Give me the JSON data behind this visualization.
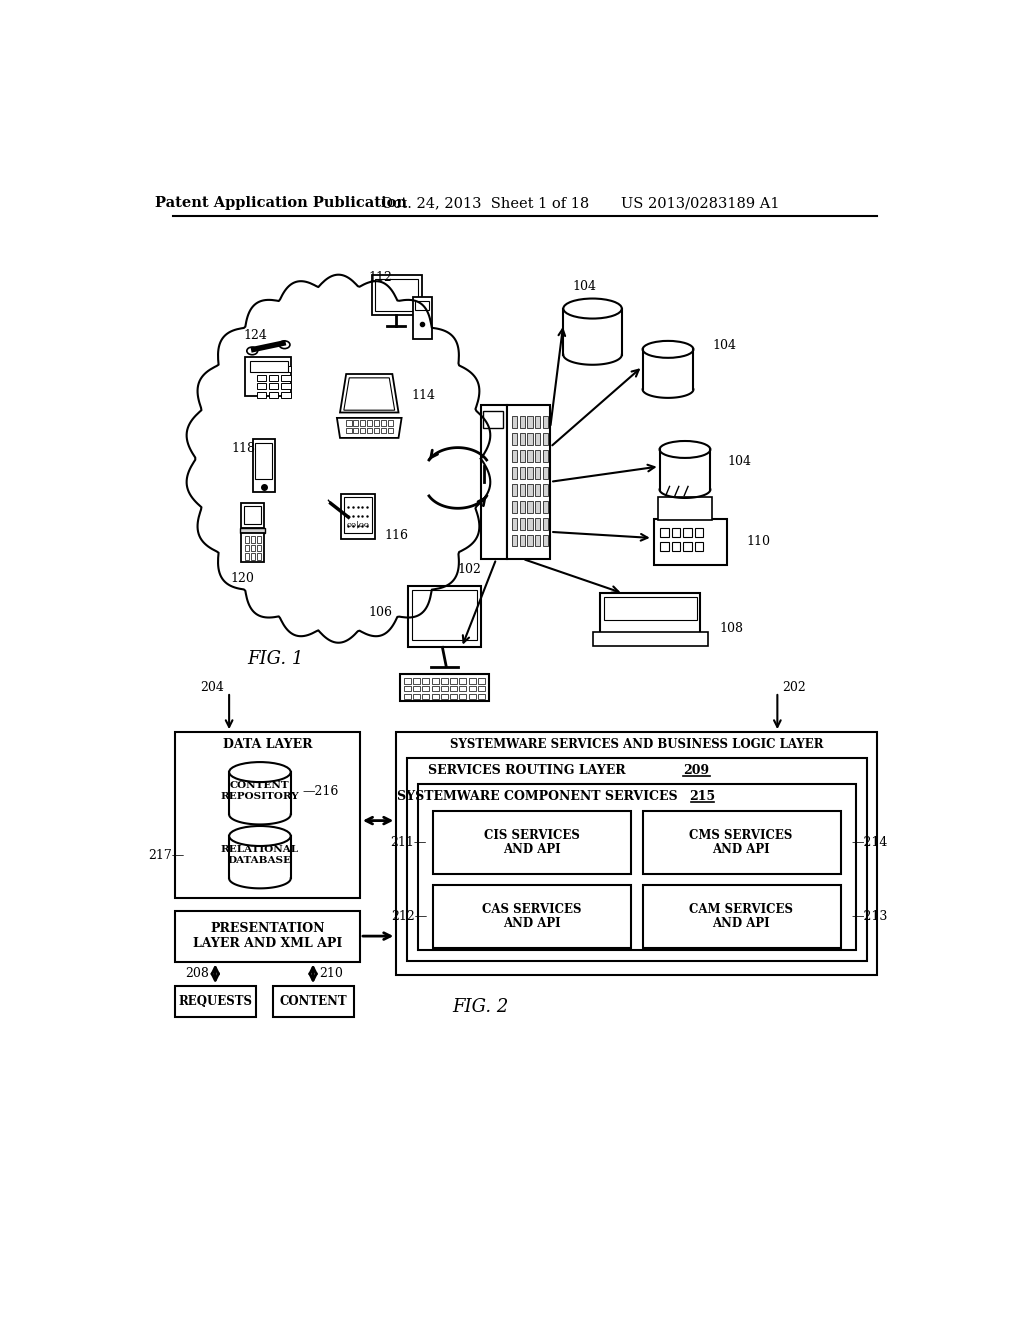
{
  "bg_color": "#ffffff",
  "header_text1": "Patent Application Publication",
  "header_text2": "Oct. 24, 2013  Sheet 1 of 18",
  "header_text3": "US 2013/0283189 A1",
  "fig1_label": "FIG. 1",
  "fig2_label": "FIG. 2"
}
